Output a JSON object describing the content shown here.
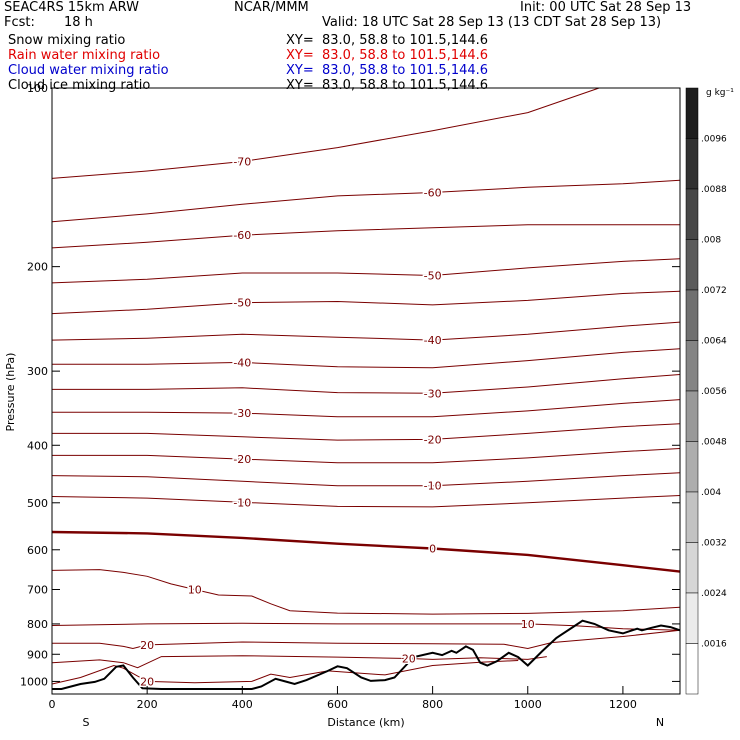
{
  "header": {
    "model": "SEAC4RS 15km ARW",
    "center": "NCAR/MMM",
    "init": "Init: 00 UTC Sat 28 Sep 13",
    "fcst_label": "Fcst:",
    "fcst_value": "18 h",
    "valid": "Valid: 18 UTC Sat 28 Sep 13 (13 CDT Sat 28 Sep 13)"
  },
  "fields": [
    {
      "name": "Snow mixing ratio",
      "xy": "XY=  83.0, 58.8 to 101.5,144.6",
      "color": "#000000"
    },
    {
      "name": "Rain water mixing ratio",
      "xy": "XY=  83.0, 58.8 to 101.5,144.6",
      "color": "#e00000"
    },
    {
      "name": "Cloud water mixing ratio",
      "xy": "XY=  83.0, 58.8 to 101.5,144.6",
      "color": "#0000cc"
    },
    {
      "name": "Cloud ice mixing ratio",
      "xy": "XY=  83.0, 58.8 to 101.5,144.6",
      "color": "#000000"
    }
  ],
  "colorbar": {
    "unit": "g kg⁻¹",
    "ticks": [
      ".0096",
      ".0088",
      ".008",
      ".0072",
      ".0064",
      ".0056",
      ".0048",
      ".004",
      ".0032",
      ".0024",
      ".0016"
    ]
  },
  "chart_data": {
    "type": "line",
    "xlabel": "Distance (km)",
    "ylabel": "Pressure (hPa)",
    "xlim": [
      0,
      1320
    ],
    "ylim": [
      1050,
      100
    ],
    "y_scale": "log",
    "x_ticks": [
      "0",
      "200",
      "400",
      "600",
      "800",
      "1000",
      "1200"
    ],
    "y_ticks": [
      "100",
      "200",
      "300",
      "400",
      "500",
      "600",
      "700",
      "800",
      "900",
      "1000"
    ],
    "end_labels": {
      "left": "S",
      "right": "N"
    },
    "contour_color": "#7a0000",
    "isotherms": [
      {
        "label": "-70",
        "points": [
          [
            0,
            142
          ],
          [
            200,
            138
          ],
          [
            400,
            133
          ],
          [
            600,
            126
          ],
          [
            800,
            118
          ],
          [
            1000,
            110
          ],
          [
            1150,
            100
          ]
        ]
      },
      {
        "label": "-60",
        "points": [
          [
            0,
            168
          ],
          [
            200,
            163
          ],
          [
            400,
            157
          ],
          [
            600,
            152
          ],
          [
            800,
            150
          ],
          [
            1000,
            147
          ],
          [
            1200,
            145
          ],
          [
            1320,
            143
          ]
        ]
      },
      {
        "label": "-60",
        "points": [
          [
            0,
            186
          ],
          [
            200,
            182
          ],
          [
            400,
            177
          ],
          [
            600,
            174
          ],
          [
            800,
            172
          ],
          [
            1000,
            170
          ],
          [
            1200,
            170
          ],
          [
            1320,
            170
          ]
        ]
      },
      {
        "label": "-50",
        "points": [
          [
            0,
            213
          ],
          [
            200,
            210
          ],
          [
            400,
            205
          ],
          [
            600,
            205
          ],
          [
            800,
            207
          ],
          [
            1000,
            201
          ],
          [
            1200,
            196
          ],
          [
            1320,
            194
          ]
        ]
      },
      {
        "label": "-50",
        "points": [
          [
            0,
            240
          ],
          [
            200,
            236
          ],
          [
            400,
            230
          ],
          [
            600,
            229
          ],
          [
            800,
            232
          ],
          [
            1000,
            228
          ],
          [
            1200,
            222
          ],
          [
            1320,
            220
          ]
        ]
      },
      {
        "label": "-40",
        "points": [
          [
            0,
            266
          ],
          [
            200,
            264
          ],
          [
            400,
            260
          ],
          [
            600,
            263
          ],
          [
            800,
            266
          ],
          [
            1000,
            260
          ],
          [
            1200,
            252
          ],
          [
            1320,
            248
          ]
        ]
      },
      {
        "label": "-40",
        "points": [
          [
            0,
            292
          ],
          [
            200,
            292
          ],
          [
            400,
            290
          ],
          [
            600,
            295
          ],
          [
            800,
            296
          ],
          [
            1000,
            288
          ],
          [
            1200,
            279
          ],
          [
            1320,
            275
          ]
        ]
      },
      {
        "label": "-30",
        "points": [
          [
            0,
            322
          ],
          [
            200,
            322
          ],
          [
            400,
            320
          ],
          [
            600,
            326
          ],
          [
            800,
            327
          ],
          [
            1000,
            319
          ],
          [
            1200,
            309
          ],
          [
            1320,
            304
          ]
        ]
      },
      {
        "label": "-30",
        "points": [
          [
            0,
            352
          ],
          [
            200,
            352
          ],
          [
            400,
            353
          ],
          [
            600,
            358
          ],
          [
            800,
            358
          ],
          [
            1000,
            350
          ],
          [
            1200,
            340
          ],
          [
            1320,
            335
          ]
        ]
      },
      {
        "label": "-20",
        "points": [
          [
            0,
            382
          ],
          [
            200,
            382
          ],
          [
            400,
            387
          ],
          [
            600,
            392
          ],
          [
            800,
            391
          ],
          [
            1000,
            382
          ],
          [
            1200,
            372
          ],
          [
            1320,
            368
          ]
        ]
      },
      {
        "label": "-20",
        "points": [
          [
            0,
            416
          ],
          [
            200,
            416
          ],
          [
            400,
            422
          ],
          [
            600,
            428
          ],
          [
            800,
            428
          ],
          [
            1000,
            420
          ],
          [
            1200,
            410
          ],
          [
            1320,
            405
          ]
        ]
      },
      {
        "label": "-10",
        "points": [
          [
            0,
            450
          ],
          [
            200,
            452
          ],
          [
            400,
            460
          ],
          [
            600,
            468
          ],
          [
            800,
            468
          ],
          [
            1000,
            460
          ],
          [
            1200,
            450
          ],
          [
            1320,
            445
          ]
        ]
      },
      {
        "label": "-10",
        "points": [
          [
            0,
            488
          ],
          [
            200,
            491
          ],
          [
            400,
            499
          ],
          [
            600,
            507
          ],
          [
            800,
            508
          ],
          [
            1000,
            500
          ],
          [
            1200,
            491
          ],
          [
            1320,
            486
          ]
        ]
      },
      {
        "label": "0",
        "bold": true,
        "points": [
          [
            0,
            560
          ],
          [
            200,
            563
          ],
          [
            400,
            573
          ],
          [
            600,
            586
          ],
          [
            800,
            597
          ],
          [
            1000,
            612
          ],
          [
            1200,
            637
          ],
          [
            1320,
            653
          ]
        ]
      },
      {
        "label": "10",
        "points": [
          [
            0,
            650
          ],
          [
            100,
            648
          ],
          [
            150,
            655
          ],
          [
            200,
            665
          ],
          [
            250,
            685
          ],
          [
            300,
            700
          ],
          [
            350,
            715
          ],
          [
            420,
            718
          ],
          [
            460,
            740
          ],
          [
            500,
            760
          ],
          [
            600,
            767
          ],
          [
            800,
            770
          ],
          [
            1000,
            768
          ],
          [
            1200,
            760
          ],
          [
            1320,
            750
          ]
        ]
      },
      {
        "label": "10",
        "points": [
          [
            0,
            805
          ],
          [
            200,
            800
          ],
          [
            400,
            798
          ],
          [
            600,
            800
          ],
          [
            800,
            800
          ],
          [
            1000,
            800
          ],
          [
            1100,
            806
          ],
          [
            1200,
            815
          ],
          [
            1320,
            820
          ]
        ]
      },
      {
        "label": "20",
        "points": [
          [
            0,
            862
          ],
          [
            100,
            862
          ],
          [
            150,
            873
          ],
          [
            170,
            880
          ],
          [
            200,
            868
          ],
          [
            400,
            858
          ],
          [
            600,
            862
          ],
          [
            800,
            864
          ],
          [
            950,
            866
          ],
          [
            1000,
            880
          ],
          [
            1050,
            860
          ],
          [
            1200,
            840
          ],
          [
            1320,
            820
          ]
        ]
      },
      {
        "label": "20",
        "points": [
          [
            0,
            930
          ],
          [
            100,
            920
          ],
          [
            150,
            930
          ],
          [
            180,
            948
          ],
          [
            230,
            908
          ],
          [
            400,
            905
          ],
          [
            600,
            910
          ],
          [
            750,
            915
          ],
          [
            800,
            918
          ],
          [
            900,
            912
          ],
          [
            1000,
            918
          ],
          [
            1040,
            908
          ]
        ]
      },
      {
        "label": "20",
        "points": [
          [
            0,
            1010
          ],
          [
            60,
            985
          ],
          [
            130,
            940
          ],
          [
            150,
            950
          ],
          [
            200,
            1000
          ],
          [
            300,
            1005
          ],
          [
            420,
            1000
          ],
          [
            460,
            972
          ],
          [
            500,
            985
          ],
          [
            580,
            960
          ],
          [
            700,
            975
          ],
          [
            800,
            940
          ],
          [
            900,
            928
          ],
          [
            980,
            922
          ]
        ]
      }
    ],
    "terrain": [
      [
        0,
        1030
      ],
      [
        20,
        1030
      ],
      [
        40,
        1020
      ],
      [
        60,
        1010
      ],
      [
        90,
        1002
      ],
      [
        110,
        990
      ],
      [
        135,
        945
      ],
      [
        150,
        940
      ],
      [
        170,
        985
      ],
      [
        190,
        1027
      ],
      [
        230,
        1030
      ],
      [
        300,
        1030
      ],
      [
        380,
        1030
      ],
      [
        420,
        1030
      ],
      [
        440,
        1020
      ],
      [
        470,
        990
      ],
      [
        490,
        1000
      ],
      [
        510,
        1010
      ],
      [
        535,
        995
      ],
      [
        580,
        960
      ],
      [
        600,
        943
      ],
      [
        620,
        950
      ],
      [
        650,
        985
      ],
      [
        670,
        998
      ],
      [
        700,
        995
      ],
      [
        720,
        985
      ],
      [
        760,
        910
      ],
      [
        800,
        895
      ],
      [
        820,
        903
      ],
      [
        840,
        888
      ],
      [
        850,
        895
      ],
      [
        870,
        873
      ],
      [
        885,
        885
      ],
      [
        900,
        930
      ],
      [
        915,
        940
      ],
      [
        935,
        925
      ],
      [
        960,
        895
      ],
      [
        980,
        910
      ],
      [
        1000,
        940
      ],
      [
        1030,
        890
      ],
      [
        1060,
        845
      ],
      [
        1100,
        805
      ],
      [
        1115,
        790
      ],
      [
        1140,
        800
      ],
      [
        1170,
        820
      ],
      [
        1200,
        830
      ],
      [
        1230,
        815
      ],
      [
        1240,
        820
      ],
      [
        1260,
        812
      ],
      [
        1280,
        805
      ],
      [
        1300,
        810
      ],
      [
        1320,
        820
      ]
    ]
  }
}
